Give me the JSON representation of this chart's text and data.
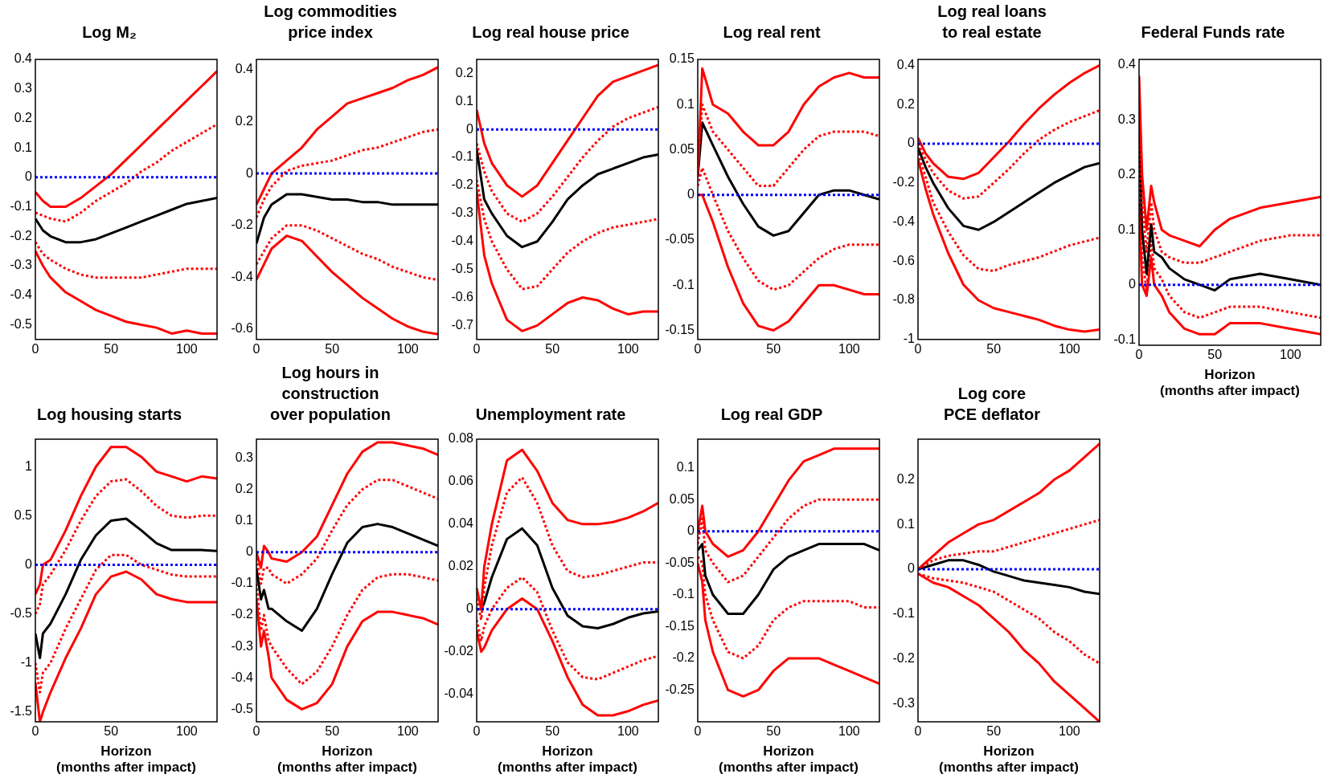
{
  "chart_data": [
    {
      "type": "line",
      "title": "Log M₂",
      "x": [
        0,
        5,
        10,
        20,
        30,
        40,
        50,
        60,
        70,
        80,
        90,
        100,
        110,
        120
      ],
      "xlim": [
        0,
        120
      ],
      "xticks": [
        0,
        50,
        100
      ],
      "ylim": [
        -0.55,
        0.4
      ],
      "yticks": [
        -0.5,
        -0.4,
        -0.3,
        -0.2,
        -0.1,
        0,
        0.1,
        0.2,
        0.3,
        0.4
      ],
      "marker": "none",
      "legend": false,
      "ref_lines": [
        {
          "axis": "y",
          "value": 0,
          "color": "#0000ff",
          "line_style": "dotted"
        }
      ],
      "series": [
        {
          "color": "#ff0000",
          "line_style": "solid",
          "values": [
            -0.05,
            -0.08,
            -0.1,
            -0.1,
            -0.07,
            -0.03,
            0.01,
            0.06,
            0.11,
            0.16,
            0.21,
            0.26,
            0.31,
            0.36
          ]
        },
        {
          "color": "#ff0000",
          "line_style": "dotted",
          "values": [
            -0.12,
            -0.13,
            -0.14,
            -0.15,
            -0.12,
            -0.08,
            -0.05,
            -0.02,
            0.02,
            0.05,
            0.09,
            0.12,
            0.15,
            0.18
          ]
        },
        {
          "color": "#000000",
          "line_style": "solid",
          "values": [
            -0.14,
            -0.18,
            -0.2,
            -0.22,
            -0.22,
            -0.21,
            -0.19,
            -0.17,
            -0.15,
            -0.13,
            -0.11,
            -0.09,
            -0.08,
            -0.07
          ]
        },
        {
          "color": "#ff0000",
          "line_style": "dotted",
          "values": [
            -0.22,
            -0.26,
            -0.28,
            -0.31,
            -0.33,
            -0.34,
            -0.34,
            -0.34,
            -0.34,
            -0.33,
            -0.32,
            -0.31,
            -0.31,
            -0.31
          ]
        },
        {
          "color": "#ff0000",
          "line_style": "solid",
          "values": [
            -0.25,
            -0.3,
            -0.34,
            -0.39,
            -0.42,
            -0.45,
            -0.47,
            -0.49,
            -0.5,
            -0.51,
            -0.53,
            -0.52,
            -0.53,
            -0.53
          ]
        }
      ]
    },
    {
      "type": "line",
      "title": "Log commodities\nprice index",
      "x": [
        0,
        5,
        10,
        20,
        30,
        40,
        50,
        60,
        70,
        80,
        90,
        100,
        110,
        120
      ],
      "xlim": [
        0,
        120
      ],
      "xticks": [
        0,
        50,
        100
      ],
      "ylim": [
        -0.64,
        0.44
      ],
      "yticks": [
        -0.6,
        -0.4,
        -0.2,
        0,
        0.2,
        0.4
      ],
      "marker": "none",
      "legend": false,
      "ref_lines": [
        {
          "axis": "y",
          "value": 0,
          "color": "#0000ff",
          "line_style": "dotted"
        }
      ],
      "series": [
        {
          "color": "#ff0000",
          "line_style": "solid",
          "values": [
            -0.12,
            -0.06,
            0,
            0.05,
            0.1,
            0.17,
            0.22,
            0.27,
            0.29,
            0.31,
            0.33,
            0.36,
            0.38,
            0.41
          ]
        },
        {
          "color": "#ff0000",
          "line_style": "dotted",
          "values": [
            -0.17,
            -0.1,
            -0.05,
            0.01,
            0.03,
            0.04,
            0.05,
            0.07,
            0.09,
            0.1,
            0.12,
            0.14,
            0.16,
            0.17
          ]
        },
        {
          "color": "#000000",
          "line_style": "solid",
          "values": [
            -0.27,
            -0.17,
            -0.12,
            -0.08,
            -0.08,
            -0.09,
            -0.1,
            -0.1,
            -0.11,
            -0.11,
            -0.12,
            -0.12,
            -0.12,
            -0.12
          ]
        },
        {
          "color": "#ff0000",
          "line_style": "dotted",
          "values": [
            -0.35,
            -0.3,
            -0.25,
            -0.2,
            -0.2,
            -0.22,
            -0.25,
            -0.28,
            -0.31,
            -0.33,
            -0.36,
            -0.38,
            -0.4,
            -0.41
          ]
        },
        {
          "color": "#ff0000",
          "line_style": "solid",
          "values": [
            -0.41,
            -0.35,
            -0.29,
            -0.24,
            -0.26,
            -0.32,
            -0.38,
            -0.43,
            -0.48,
            -0.52,
            -0.56,
            -0.59,
            -0.61,
            -0.62
          ]
        }
      ]
    },
    {
      "type": "line",
      "title": "Log real house price",
      "x": [
        0,
        5,
        10,
        20,
        30,
        40,
        50,
        60,
        70,
        80,
        90,
        100,
        110,
        120
      ],
      "xlim": [
        0,
        120
      ],
      "xticks": [
        0,
        50,
        100
      ],
      "ylim": [
        -0.75,
        0.25
      ],
      "yticks": [
        -0.7,
        -0.6,
        -0.5,
        -0.4,
        -0.3,
        -0.2,
        -0.1,
        0,
        0.1,
        0.2
      ],
      "marker": "none",
      "legend": false,
      "ref_lines": [
        {
          "axis": "y",
          "value": 0,
          "color": "#0000ff",
          "line_style": "dotted"
        }
      ],
      "series": [
        {
          "color": "#ff0000",
          "line_style": "solid",
          "values": [
            0.07,
            -0.05,
            -0.12,
            -0.2,
            -0.24,
            -0.2,
            -0.12,
            -0.04,
            0.04,
            0.12,
            0.17,
            0.19,
            0.21,
            0.23
          ]
        },
        {
          "color": "#ff0000",
          "line_style": "dotted",
          "values": [
            -0.05,
            -0.15,
            -0.22,
            -0.3,
            -0.33,
            -0.3,
            -0.24,
            -0.17,
            -0.1,
            -0.04,
            0.01,
            0.04,
            0.06,
            0.08
          ]
        },
        {
          "color": "#000000",
          "line_style": "solid",
          "values": [
            -0.07,
            -0.25,
            -0.3,
            -0.38,
            -0.42,
            -0.4,
            -0.33,
            -0.25,
            -0.2,
            -0.16,
            -0.14,
            -0.12,
            -0.1,
            -0.09
          ]
        },
        {
          "color": "#ff0000",
          "line_style": "dotted",
          "values": [
            -0.18,
            -0.32,
            -0.4,
            -0.5,
            -0.57,
            -0.56,
            -0.5,
            -0.44,
            -0.4,
            -0.37,
            -0.35,
            -0.34,
            -0.33,
            -0.32
          ]
        },
        {
          "color": "#ff0000",
          "line_style": "solid",
          "values": [
            -0.22,
            -0.45,
            -0.55,
            -0.68,
            -0.72,
            -0.7,
            -0.66,
            -0.62,
            -0.6,
            -0.61,
            -0.64,
            -0.66,
            -0.65,
            -0.65
          ]
        }
      ]
    },
    {
      "type": "line",
      "title": "Log real rent",
      "x": [
        0,
        3,
        10,
        20,
        30,
        40,
        50,
        60,
        70,
        80,
        90,
        100,
        110,
        120
      ],
      "xlim": [
        0,
        120
      ],
      "xticks": [
        0,
        50,
        100
      ],
      "ylim": [
        -0.16,
        0.15
      ],
      "yticks": [
        -0.15,
        -0.1,
        -0.05,
        0,
        0.05,
        0.1,
        0.15
      ],
      "marker": "none",
      "legend": false,
      "ref_lines": [
        {
          "axis": "y",
          "value": 0,
          "color": "#0000ff",
          "line_style": "dotted"
        }
      ],
      "series": [
        {
          "color": "#ff0000",
          "line_style": "solid",
          "values": [
            0.02,
            0.14,
            0.1,
            0.09,
            0.07,
            0.055,
            0.055,
            0.07,
            0.1,
            0.12,
            0.13,
            0.135,
            0.13,
            0.13
          ]
        },
        {
          "color": "#ff0000",
          "line_style": "dotted",
          "values": [
            0.03,
            0.1,
            0.07,
            0.05,
            0.03,
            0.01,
            0.01,
            0.03,
            0.05,
            0.065,
            0.07,
            0.07,
            0.07,
            0.065
          ]
        },
        {
          "color": "#000000",
          "line_style": "solid",
          "values": [
            0.02,
            0.08,
            0.055,
            0.02,
            -0.01,
            -0.035,
            -0.045,
            -0.04,
            -0.02,
            0,
            0.005,
            0.005,
            0,
            -0.005
          ]
        },
        {
          "color": "#ff0000",
          "line_style": "dotted",
          "values": [
            0.01,
            0.03,
            0,
            -0.04,
            -0.07,
            -0.095,
            -0.105,
            -0.1,
            -0.085,
            -0.07,
            -0.06,
            -0.055,
            -0.055,
            -0.055
          ]
        },
        {
          "color": "#ff0000",
          "line_style": "solid",
          "values": [
            0,
            0,
            -0.03,
            -0.08,
            -0.12,
            -0.145,
            -0.15,
            -0.14,
            -0.12,
            -0.1,
            -0.1,
            -0.105,
            -0.11,
            -0.11
          ]
        }
      ]
    },
    {
      "type": "line",
      "title": "Log real loans\nto real estate",
      "x": [
        0,
        5,
        10,
        20,
        30,
        40,
        50,
        60,
        70,
        80,
        90,
        100,
        110,
        120
      ],
      "xlim": [
        0,
        120
      ],
      "xticks": [
        0,
        50,
        100
      ],
      "ylim": [
        -1,
        0.43
      ],
      "yticks": [
        -1,
        -0.8,
        -0.6,
        -0.4,
        -0.2,
        0,
        0.2,
        0.4
      ],
      "marker": "none",
      "legend": false,
      "ref_lines": [
        {
          "axis": "y",
          "value": 0,
          "color": "#0000ff",
          "line_style": "dotted"
        }
      ],
      "series": [
        {
          "color": "#ff0000",
          "line_style": "solid",
          "values": [
            0.03,
            -0.05,
            -0.1,
            -0.17,
            -0.18,
            -0.15,
            -0.07,
            0.01,
            0.1,
            0.18,
            0.25,
            0.31,
            0.36,
            0.4
          ]
        },
        {
          "color": "#ff0000",
          "line_style": "dotted",
          "values": [
            0,
            -0.08,
            -0.15,
            -0.24,
            -0.28,
            -0.27,
            -0.2,
            -0.13,
            -0.05,
            0.02,
            0.07,
            0.11,
            0.14,
            0.17
          ]
        },
        {
          "color": "#000000",
          "line_style": "solid",
          "values": [
            -0.02,
            -0.12,
            -0.2,
            -0.33,
            -0.42,
            -0.44,
            -0.4,
            -0.35,
            -0.3,
            -0.25,
            -0.2,
            -0.16,
            -0.12,
            -0.1
          ]
        },
        {
          "color": "#ff0000",
          "line_style": "dotted",
          "values": [
            -0.05,
            -0.17,
            -0.3,
            -0.45,
            -0.57,
            -0.64,
            -0.65,
            -0.62,
            -0.6,
            -0.58,
            -0.55,
            -0.52,
            -0.5,
            -0.48
          ]
        },
        {
          "color": "#ff0000",
          "line_style": "solid",
          "values": [
            -0.08,
            -0.23,
            -0.36,
            -0.56,
            -0.72,
            -0.8,
            -0.84,
            -0.86,
            -0.88,
            -0.9,
            -0.93,
            -0.95,
            -0.96,
            -0.95
          ]
        }
      ]
    },
    {
      "type": "line",
      "title": "Federal Funds rate",
      "xlabel": "Horizon\n(months after impact)",
      "x": [
        0,
        2,
        5,
        8,
        10,
        15,
        20,
        30,
        40,
        50,
        60,
        80,
        100,
        120
      ],
      "xlim": [
        0,
        120
      ],
      "xticks": [
        0,
        50,
        100
      ],
      "ylim": [
        -0.11,
        0.41
      ],
      "yticks": [
        -0.1,
        0,
        0.1,
        0.2,
        0.3,
        0.4
      ],
      "marker": "none",
      "legend": false,
      "ref_lines": [
        {
          "axis": "y",
          "value": 0,
          "color": "#0000ff",
          "line_style": "dotted"
        }
      ],
      "series": [
        {
          "color": "#ff0000",
          "line_style": "solid",
          "values": [
            0.38,
            0.2,
            0.1,
            0.18,
            0.15,
            0.1,
            0.09,
            0.08,
            0.07,
            0.1,
            0.12,
            0.14,
            0.15,
            0.16
          ]
        },
        {
          "color": "#ff0000",
          "line_style": "dotted",
          "values": [
            0.3,
            0.15,
            0.06,
            0.15,
            0.1,
            0.06,
            0.05,
            0.04,
            0.04,
            0.05,
            0.06,
            0.08,
            0.09,
            0.09
          ]
        },
        {
          "color": "#000000",
          "line_style": "solid",
          "values": [
            0.3,
            0.1,
            0.02,
            0.11,
            0.06,
            0.05,
            0.03,
            0.01,
            0,
            -0.01,
            0.01,
            0.02,
            0.01,
            0
          ]
        },
        {
          "color": "#ff0000",
          "line_style": "dotted",
          "values": [
            0.2,
            0.05,
            -0.01,
            0.08,
            0.03,
            0.01,
            -0.02,
            -0.05,
            -0.06,
            -0.05,
            -0.04,
            -0.04,
            -0.05,
            -0.06
          ]
        },
        {
          "color": "#ff0000",
          "line_style": "solid",
          "values": [
            0.15,
            0,
            -0.02,
            0.05,
            0,
            -0.02,
            -0.05,
            -0.08,
            -0.09,
            -0.09,
            -0.07,
            -0.07,
            -0.08,
            -0.09
          ]
        }
      ]
    },
    {
      "type": "line",
      "title": "Log housing starts",
      "xlabel": "Horizon\n(months after impact)",
      "x": [
        0,
        3,
        5,
        10,
        20,
        30,
        40,
        50,
        60,
        70,
        80,
        90,
        100,
        110,
        120
      ],
      "xlim": [
        0,
        120
      ],
      "xticks": [
        0,
        50,
        100
      ],
      "ylim": [
        -1.6,
        1.28
      ],
      "yticks": [
        -1.5,
        -1,
        -0.5,
        0,
        0.5,
        1
      ],
      "marker": "none",
      "legend": false,
      "ref_lines": [
        {
          "axis": "y",
          "value": 0,
          "color": "#0000ff",
          "line_style": "dotted"
        }
      ],
      "series": [
        {
          "color": "#ff0000",
          "line_style": "solid",
          "values": [
            -0.3,
            -0.2,
            0,
            0.05,
            0.35,
            0.7,
            1,
            1.2,
            1.2,
            1.1,
            0.95,
            0.9,
            0.85,
            0.9,
            0.88
          ]
        },
        {
          "color": "#ff0000",
          "line_style": "dotted",
          "values": [
            -0.5,
            -0.4,
            -0.2,
            -0.1,
            0.15,
            0.45,
            0.7,
            0.85,
            0.87,
            0.75,
            0.6,
            0.5,
            0.48,
            0.5,
            0.5
          ]
        },
        {
          "color": "#000000",
          "line_style": "solid",
          "values": [
            -0.7,
            -0.95,
            -0.7,
            -0.6,
            -0.3,
            0.05,
            0.3,
            0.45,
            0.47,
            0.35,
            0.22,
            0.15,
            0.15,
            0.15,
            0.14
          ]
        },
        {
          "color": "#ff0000",
          "line_style": "dotted",
          "values": [
            -1,
            -1.3,
            -1.1,
            -1,
            -0.65,
            -0.35,
            -0.05,
            0.1,
            0.1,
            0,
            -0.05,
            -0.1,
            -0.12,
            -0.12,
            -0.12
          ]
        },
        {
          "color": "#ff0000",
          "line_style": "solid",
          "values": [
            -1.2,
            -1.6,
            -1.5,
            -1.3,
            -0.95,
            -0.65,
            -0.3,
            -0.12,
            -0.07,
            -0.15,
            -0.3,
            -0.35,
            -0.38,
            -0.38,
            -0.38
          ]
        }
      ]
    },
    {
      "type": "line",
      "title": "Log hours in\nconstruction\nover population",
      "xlabel": "Horizon\n(months after impact)",
      "x": [
        0,
        3,
        5,
        8,
        10,
        20,
        30,
        40,
        50,
        60,
        70,
        80,
        90,
        100,
        110,
        120
      ],
      "xlim": [
        0,
        120
      ],
      "xticks": [
        0,
        50,
        100
      ],
      "ylim": [
        -0.54,
        0.36
      ],
      "yticks": [
        -0.5,
        -0.4,
        -0.3,
        -0.2,
        -0.1,
        0,
        0.1,
        0.2,
        0.3
      ],
      "marker": "none",
      "legend": false,
      "ref_lines": [
        {
          "axis": "y",
          "value": 0,
          "color": "#0000ff",
          "line_style": "dotted"
        }
      ],
      "series": [
        {
          "color": "#ff0000",
          "line_style": "solid",
          "values": [
            0,
            -0.05,
            0.02,
            0,
            -0.02,
            -0.03,
            0,
            0.05,
            0.15,
            0.25,
            0.32,
            0.35,
            0.35,
            0.34,
            0.33,
            0.31
          ]
        },
        {
          "color": "#ff0000",
          "line_style": "dotted",
          "values": [
            -0.02,
            -0.1,
            -0.05,
            -0.05,
            -0.07,
            -0.1,
            -0.07,
            -0.02,
            0.07,
            0.15,
            0.2,
            0.23,
            0.23,
            0.21,
            0.19,
            0.17
          ]
        },
        {
          "color": "#000000",
          "line_style": "solid",
          "values": [
            -0.05,
            -0.15,
            -0.12,
            -0.18,
            -0.18,
            -0.22,
            -0.25,
            -0.18,
            -0.07,
            0.03,
            0.08,
            0.09,
            0.08,
            0.06,
            0.04,
            0.02
          ]
        },
        {
          "color": "#ff0000",
          "line_style": "dotted",
          "values": [
            -0.1,
            -0.25,
            -0.2,
            -0.28,
            -0.3,
            -0.37,
            -0.42,
            -0.38,
            -0.3,
            -0.2,
            -0.12,
            -0.08,
            -0.07,
            -0.07,
            -0.08,
            -0.09
          ]
        },
        {
          "color": "#ff0000",
          "line_style": "solid",
          "values": [
            -0.15,
            -0.3,
            -0.25,
            -0.33,
            -0.4,
            -0.47,
            -0.5,
            -0.48,
            -0.42,
            -0.3,
            -0.22,
            -0.19,
            -0.19,
            -0.2,
            -0.21,
            -0.23
          ]
        }
      ]
    },
    {
      "type": "line",
      "title": "Unemployment rate",
      "xlabel": "Horizon\n(months after impact)",
      "x": [
        0,
        3,
        5,
        10,
        20,
        30,
        40,
        50,
        60,
        70,
        80,
        90,
        100,
        110,
        120
      ],
      "xlim": [
        0,
        120
      ],
      "xticks": [
        0,
        50,
        100
      ],
      "ylim": [
        -0.053,
        0.08
      ],
      "yticks": [
        -0.04,
        -0.02,
        0,
        0.02,
        0.04,
        0.06,
        0.08
      ],
      "marker": "none",
      "legend": false,
      "ref_lines": [
        {
          "axis": "y",
          "value": 0,
          "color": "#0000ff",
          "line_style": "dotted"
        }
      ],
      "series": [
        {
          "color": "#ff0000",
          "line_style": "solid",
          "values": [
            0.01,
            0,
            0.02,
            0.04,
            0.07,
            0.075,
            0.065,
            0.05,
            0.042,
            0.04,
            0.04,
            0.041,
            0.043,
            0.046,
            0.05
          ]
        },
        {
          "color": "#ff0000",
          "line_style": "dotted",
          "values": [
            0.005,
            -0.005,
            0.01,
            0.03,
            0.055,
            0.062,
            0.05,
            0.03,
            0.018,
            0.015,
            0.016,
            0.018,
            0.02,
            0.022,
            0.022
          ]
        },
        {
          "color": "#000000",
          "line_style": "solid",
          "values": [
            0,
            0,
            0.003,
            0.015,
            0.033,
            0.038,
            0.03,
            0.01,
            -0.003,
            -0.008,
            -0.009,
            -0.007,
            -0.004,
            -0.002,
            -0.001
          ]
        },
        {
          "color": "#ff0000",
          "line_style": "dotted",
          "values": [
            -0.005,
            -0.015,
            -0.008,
            0,
            0.01,
            0.015,
            0.008,
            -0.01,
            -0.025,
            -0.032,
            -0.033,
            -0.03,
            -0.027,
            -0.024,
            -0.022
          ]
        },
        {
          "color": "#ff0000",
          "line_style": "solid",
          "values": [
            -0.01,
            -0.02,
            -0.018,
            -0.01,
            0,
            0.005,
            0,
            -0.015,
            -0.032,
            -0.045,
            -0.05,
            -0.05,
            -0.048,
            -0.045,
            -0.043
          ]
        }
      ]
    },
    {
      "type": "line",
      "title": "Log real GDP",
      "xlabel": "Horizon\n(months after impact)",
      "x": [
        0,
        3,
        5,
        10,
        20,
        30,
        40,
        50,
        60,
        70,
        80,
        90,
        100,
        110,
        120
      ],
      "xlim": [
        0,
        120
      ],
      "xticks": [
        0,
        50,
        100
      ],
      "ylim": [
        -0.3,
        0.145
      ],
      "yticks": [
        -0.25,
        -0.2,
        -0.15,
        -0.1,
        -0.05,
        0,
        0.05,
        0.1
      ],
      "marker": "none",
      "legend": false,
      "ref_lines": [
        {
          "axis": "y",
          "value": 0,
          "color": "#0000ff",
          "line_style": "dotted"
        }
      ],
      "series": [
        {
          "color": "#ff0000",
          "line_style": "solid",
          "values": [
            0,
            0.04,
            0,
            -0.02,
            -0.04,
            -0.03,
            0,
            0.04,
            0.08,
            0.11,
            0.12,
            0.13,
            0.13,
            0.13,
            0.13
          ]
        },
        {
          "color": "#ff0000",
          "line_style": "dotted",
          "values": [
            -0.02,
            0.02,
            -0.03,
            -0.05,
            -0.08,
            -0.07,
            -0.04,
            -0.01,
            0.02,
            0.04,
            0.05,
            0.05,
            0.05,
            0.05,
            0.05
          ]
        },
        {
          "color": "#000000",
          "line_style": "solid",
          "values": [
            -0.03,
            -0.02,
            -0.07,
            -0.1,
            -0.13,
            -0.13,
            -0.1,
            -0.06,
            -0.04,
            -0.03,
            -0.02,
            -0.02,
            -0.02,
            -0.02,
            -0.03
          ]
        },
        {
          "color": "#ff0000",
          "line_style": "dotted",
          "values": [
            -0.04,
            -0.05,
            -0.1,
            -0.14,
            -0.19,
            -0.2,
            -0.18,
            -0.14,
            -0.12,
            -0.11,
            -0.11,
            -0.11,
            -0.11,
            -0.12,
            -0.12
          ]
        },
        {
          "color": "#ff0000",
          "line_style": "solid",
          "values": [
            -0.05,
            -0.08,
            -0.14,
            -0.19,
            -0.25,
            -0.26,
            -0.25,
            -0.22,
            -0.2,
            -0.2,
            -0.2,
            -0.21,
            -0.22,
            -0.23,
            -0.24
          ]
        }
      ]
    },
    {
      "type": "line",
      "title": "Log core\nPCE deflator",
      "xlabel": "Horizon\n(months after impact)",
      "x": [
        0,
        10,
        20,
        30,
        40,
        50,
        60,
        70,
        80,
        90,
        100,
        110,
        120
      ],
      "xlim": [
        0,
        120
      ],
      "xticks": [
        0,
        50,
        100
      ],
      "ylim": [
        -0.34,
        0.29
      ],
      "yticks": [
        -0.3,
        -0.2,
        -0.1,
        0,
        0.1,
        0.2
      ],
      "marker": "none",
      "legend": false,
      "ref_lines": [
        {
          "axis": "y",
          "value": 0,
          "color": "#0000ff",
          "line_style": "dotted"
        }
      ],
      "series": [
        {
          "color": "#ff0000",
          "line_style": "solid",
          "values": [
            0,
            0.03,
            0.06,
            0.08,
            0.1,
            0.11,
            0.13,
            0.15,
            0.17,
            0.2,
            0.22,
            0.25,
            0.28
          ]
        },
        {
          "color": "#ff0000",
          "line_style": "dotted",
          "values": [
            0,
            0.02,
            0.03,
            0.035,
            0.04,
            0.04,
            0.05,
            0.06,
            0.07,
            0.08,
            0.09,
            0.1,
            0.11
          ]
        },
        {
          "color": "#000000",
          "line_style": "solid",
          "values": [
            0,
            0.01,
            0.02,
            0.02,
            0.01,
            -0.005,
            -0.015,
            -0.025,
            -0.03,
            -0.035,
            -0.04,
            -0.05,
            -0.055
          ]
        },
        {
          "color": "#ff0000",
          "line_style": "dotted",
          "values": [
            -0.01,
            -0.02,
            -0.025,
            -0.03,
            -0.04,
            -0.05,
            -0.07,
            -0.09,
            -0.11,
            -0.14,
            -0.16,
            -0.19,
            -0.21
          ]
        },
        {
          "color": "#ff0000",
          "line_style": "solid",
          "values": [
            -0.01,
            -0.03,
            -0.04,
            -0.06,
            -0.08,
            -0.11,
            -0.14,
            -0.18,
            -0.21,
            -0.25,
            -0.28,
            -0.31,
            -0.34
          ]
        }
      ]
    }
  ]
}
